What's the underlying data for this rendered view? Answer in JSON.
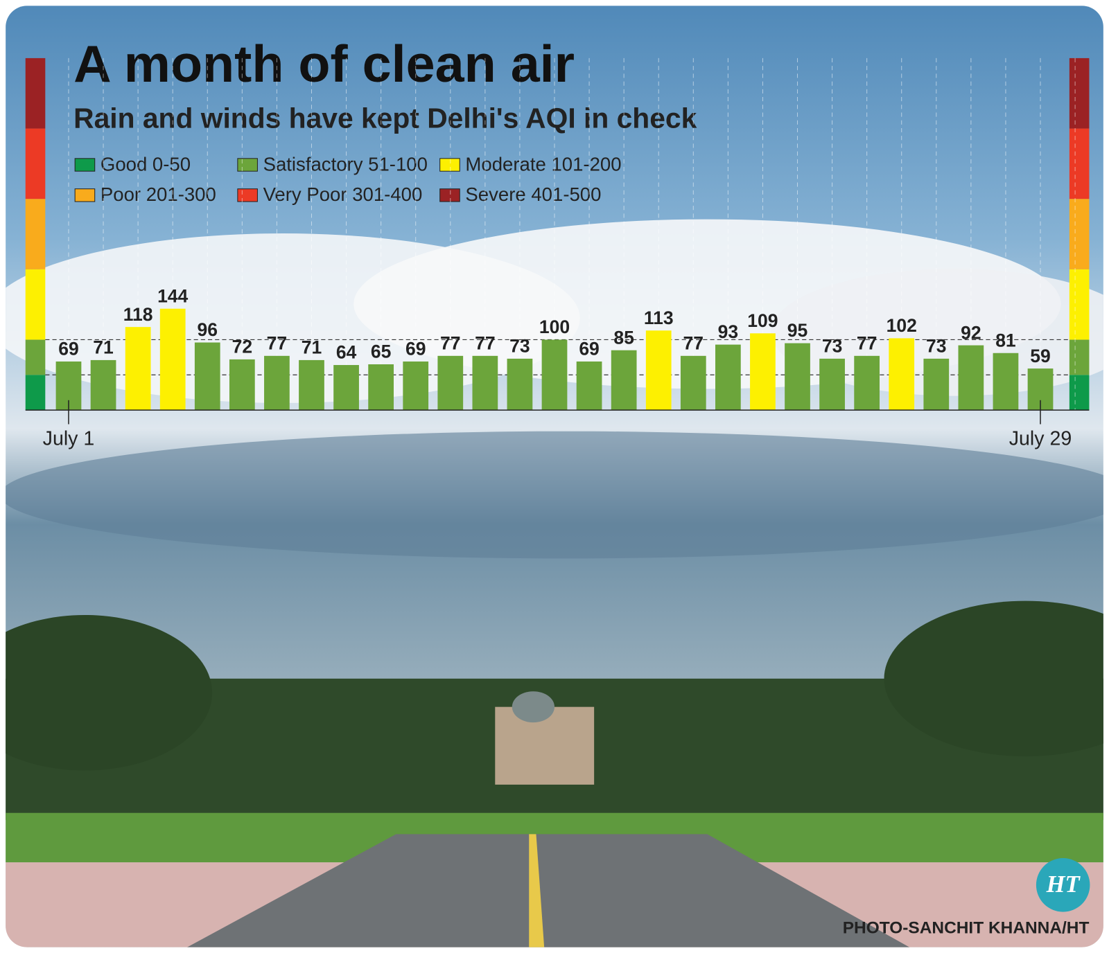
{
  "chart_data": {
    "type": "bar",
    "title": "A month of clean air",
    "subtitle": "Rain and winds have kept Delhi's AQI in check",
    "categories": [
      "July 1",
      null,
      null,
      null,
      null,
      null,
      null,
      null,
      null,
      null,
      null,
      null,
      null,
      null,
      null,
      null,
      null,
      null,
      null,
      null,
      null,
      null,
      null,
      null,
      null,
      null,
      null,
      null,
      "July 29"
    ],
    "values": [
      69,
      71,
      118,
      144,
      96,
      72,
      77,
      71,
      64,
      65,
      69,
      77,
      77,
      73,
      100,
      69,
      85,
      113,
      77,
      93,
      109,
      95,
      73,
      77,
      102,
      73,
      92,
      81,
      59
    ],
    "legend": [
      {
        "label": "Good 0-50",
        "color": "#0e9a4a",
        "range": [
          0,
          50
        ]
      },
      {
        "label": "Satisfactory 51-100",
        "color": "#6ca53b",
        "range": [
          51,
          100
        ]
      },
      {
        "label": "Moderate 101-200",
        "color": "#fdf001",
        "range": [
          101,
          200
        ]
      },
      {
        "label": "Poor 201-300",
        "color": "#f9ab1c",
        "range": [
          201,
          300
        ]
      },
      {
        "label": "Very Poor 301-400",
        "color": "#ec3a25",
        "range": [
          301,
          400
        ]
      },
      {
        "label": "Severe 401-500",
        "color": "#9b2224",
        "range": [
          401,
          500
        ]
      }
    ],
    "ylim": [
      0,
      500
    ],
    "reference_lines": [
      50,
      100
    ],
    "credit": "PHOTO-SANCHIT KHANNA/HT",
    "logo": "HT"
  }
}
